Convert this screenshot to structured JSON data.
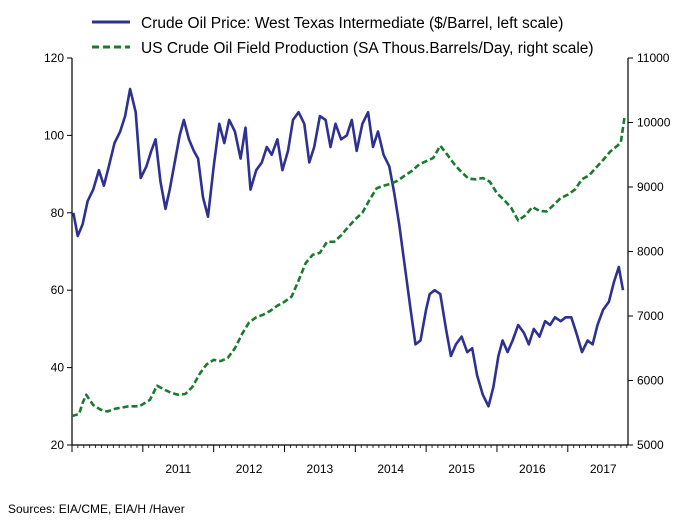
{
  "chart_data": {
    "type": "line",
    "title": "",
    "legend": {
      "placement": "top",
      "entries": [
        {
          "label": "Crude Oil Price: West Texas Intermediate ($/Barrel, left scale)",
          "color": "#2e3192",
          "style": "solid"
        },
        {
          "label": "US Crude Oil Field Production (SA Thous.Barrels/Day, right scale)",
          "color": "#1a7a2e",
          "style": "dashed"
        }
      ]
    },
    "x_axis": {
      "range": [
        2010.0,
        2017.85
      ],
      "tick_labels": [
        "2011",
        "2012",
        "2013",
        "2014",
        "2015",
        "2016",
        "2017"
      ],
      "tick_positions": [
        2011.5,
        2012.5,
        2013.5,
        2014.5,
        2015.5,
        2016.5,
        2017.5
      ],
      "minor_ticks": "monthly"
    },
    "y_axis_left": {
      "range": [
        20,
        120
      ],
      "ticks": [
        20,
        40,
        60,
        80,
        100,
        120
      ],
      "tick_labels": [
        "20",
        "40",
        "60",
        "80",
        "100",
        "120"
      ]
    },
    "y_axis_right": {
      "range": [
        5000,
        11000
      ],
      "ticks": [
        5000,
        6000,
        7000,
        8000,
        9000,
        10000,
        11000
      ],
      "tick_labels": [
        "5000",
        "6000",
        "7000",
        "8000",
        "9000",
        "10000",
        "11000"
      ]
    },
    "grid": false,
    "series": [
      {
        "name": "Crude Oil Price: West Texas Intermediate ($/Barrel, left scale)",
        "axis": "left",
        "color": "#2e3192",
        "x": [
          2010.02,
          2010.08,
          2010.15,
          2010.22,
          2010.3,
          2010.38,
          2010.45,
          2010.52,
          2010.6,
          2010.68,
          2010.75,
          2010.82,
          2010.9,
          2010.97,
          2011.05,
          2011.12,
          2011.18,
          2011.25,
          2011.32,
          2011.38,
          2011.45,
          2011.52,
          2011.58,
          2011.65,
          2011.72,
          2011.78,
          2011.85,
          2011.92,
          2012.0,
          2012.08,
          2012.15,
          2012.22,
          2012.3,
          2012.38,
          2012.45,
          2012.52,
          2012.6,
          2012.68,
          2012.75,
          2012.82,
          2012.9,
          2012.97,
          2013.05,
          2013.12,
          2013.2,
          2013.28,
          2013.35,
          2013.42,
          2013.5,
          2013.58,
          2013.65,
          2013.72,
          2013.8,
          2013.88,
          2013.95,
          2014.02,
          2014.1,
          2014.18,
          2014.25,
          2014.32,
          2014.4,
          2014.48,
          2014.55,
          2014.62,
          2014.7,
          2014.78,
          2014.85,
          2014.92,
          2015.0,
          2015.05,
          2015.12,
          2015.2,
          2015.28,
          2015.35,
          2015.42,
          2015.5,
          2015.58,
          2015.65,
          2015.72,
          2015.8,
          2015.88,
          2015.95,
          2016.02,
          2016.08,
          2016.15,
          2016.22,
          2016.3,
          2016.38,
          2016.45,
          2016.52,
          2016.6,
          2016.68,
          2016.75,
          2016.82,
          2016.9,
          2016.97,
          2017.05,
          2017.12,
          2017.2,
          2017.28,
          2017.35,
          2017.42,
          2017.5,
          2017.58,
          2017.65,
          2017.72,
          2017.78
        ],
        "values": [
          80,
          74,
          77,
          83,
          86,
          91,
          87,
          92,
          98,
          101,
          105,
          112,
          106,
          89,
          92,
          96,
          99,
          88,
          81,
          86,
          93,
          100,
          104,
          99,
          96,
          94,
          84,
          79,
          92,
          103,
          98,
          104,
          101,
          94,
          102,
          86,
          91,
          93,
          97,
          95,
          99,
          91,
          96,
          104,
          106,
          103,
          93,
          97,
          105,
          104,
          97,
          103,
          99,
          100,
          104,
          96,
          103,
          106,
          97,
          101,
          95,
          92,
          85,
          77,
          66,
          55,
          46,
          47,
          55,
          59,
          60,
          59,
          50,
          43,
          46,
          48,
          44,
          45,
          38,
          33,
          30,
          35,
          43,
          47,
          44,
          47,
          51,
          49,
          46,
          50,
          48,
          52,
          51,
          53,
          52,
          53,
          53,
          49,
          44,
          47,
          46,
          51,
          55,
          57,
          62,
          66,
          60
        ]
      },
      {
        "name": "US Crude Oil Field Production (SA Thous.Barrels/Day, right scale)",
        "axis": "right",
        "color": "#1a7a2e",
        "x": [
          2010.0,
          2010.1,
          2010.15,
          2010.2,
          2010.3,
          2010.4,
          2010.5,
          2010.6,
          2010.7,
          2010.8,
          2010.95,
          2011.1,
          2011.2,
          2011.3,
          2011.4,
          2011.5,
          2011.6,
          2011.7,
          2011.8,
          2011.9,
          2012.0,
          2012.1,
          2012.2,
          2012.3,
          2012.4,
          2012.5,
          2012.6,
          2012.7,
          2012.8,
          2012.9,
          2013.0,
          2013.1,
          2013.2,
          2013.3,
          2013.4,
          2013.5,
          2013.6,
          2013.7,
          2013.8,
          2013.9,
          2014.0,
          2014.1,
          2014.2,
          2014.3,
          2014.4,
          2014.5,
          2014.6,
          2014.7,
          2014.8,
          2014.9,
          2015.0,
          2015.1,
          2015.2,
          2015.3,
          2015.4,
          2015.5,
          2015.6,
          2015.7,
          2015.8,
          2015.9,
          2016.0,
          2016.1,
          2016.2,
          2016.3,
          2016.4,
          2016.5,
          2016.6,
          2016.7,
          2016.8,
          2016.9,
          2017.0,
          2017.1,
          2017.2,
          2017.3,
          2017.4,
          2017.5,
          2017.6,
          2017.7,
          2017.75,
          2017.8
        ],
        "values": [
          5450,
          5480,
          5650,
          5780,
          5620,
          5550,
          5520,
          5560,
          5580,
          5600,
          5600,
          5700,
          5920,
          5860,
          5810,
          5780,
          5790,
          5900,
          6100,
          6250,
          6320,
          6300,
          6350,
          6500,
          6720,
          6900,
          6980,
          7020,
          7080,
          7160,
          7220,
          7300,
          7550,
          7820,
          7950,
          7980,
          8150,
          8150,
          8250,
          8380,
          8500,
          8600,
          8800,
          8980,
          9020,
          9050,
          9100,
          9180,
          9250,
          9350,
          9400,
          9450,
          9640,
          9500,
          9350,
          9230,
          9130,
          9120,
          9140,
          9080,
          8900,
          8800,
          8680,
          8480,
          8560,
          8690,
          8630,
          8620,
          8720,
          8830,
          8880,
          8960,
          9120,
          9180,
          9300,
          9420,
          9550,
          9640,
          9700,
          10080
        ]
      }
    ],
    "source": "Sources:  EIA/CME, EIA/H /Haver"
  }
}
